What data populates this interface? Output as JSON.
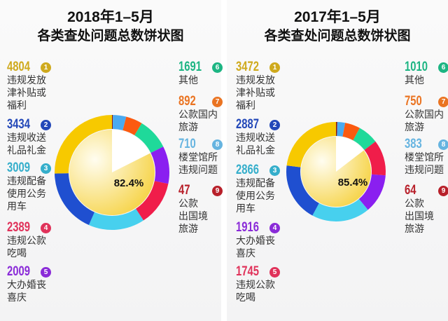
{
  "chart_data": [
    {
      "type": "pie",
      "title": "2018年1–5月",
      "subtitle": "各类查处问题总数饼状图",
      "center_label": "82.4%",
      "inner_share": 82.4,
      "items": [
        {
          "rank": "1",
          "value": 4804,
          "lines": [
            "违规发放",
            "津补贴或",
            "福利"
          ],
          "color": "#f7c900",
          "label_color": "#cfaa1e"
        },
        {
          "rank": "2",
          "value": 3434,
          "lines": [
            "违规收送",
            "礼品礼金"
          ],
          "color": "#1f4fd0",
          "label_color": "#2348b8"
        },
        {
          "rank": "3",
          "value": 3009,
          "lines": [
            "违规配备",
            "使用公务",
            "用车"
          ],
          "color": "#47d0ee",
          "label_color": "#35aecb"
        },
        {
          "rank": "4",
          "value": 2389,
          "lines": [
            "违规公款",
            "吃喝"
          ],
          "color": "#f01d4a",
          "label_color": "#e0325a"
        },
        {
          "rank": "5",
          "value": 2009,
          "lines": [
            "大办婚丧",
            "喜庆"
          ],
          "color": "#8a1ff0",
          "label_color": "#8a2bd8"
        },
        {
          "rank": "6",
          "value": 1691,
          "lines": [
            "其他"
          ],
          "color": "#1fd99a",
          "label_color": "#1db583"
        },
        {
          "rank": "7",
          "value": 892,
          "lines": [
            "公款国内",
            "旅游"
          ],
          "color": "#fb5a10",
          "label_color": "#ea7422"
        },
        {
          "rank": "8",
          "value": 710,
          "lines": [
            "楼堂馆所",
            "违规问题"
          ],
          "color": "#4aaaf0",
          "label_color": "#66b4e0"
        },
        {
          "rank": "9",
          "value": 47,
          "lines": [
            "公款",
            "出国境",
            "旅游"
          ],
          "color": "#8a1a10",
          "label_color": "#b8202a"
        }
      ]
    },
    {
      "type": "pie",
      "title": "2017年1–5月",
      "subtitle": "各类查处问题总数饼状图",
      "center_label": "85.4%",
      "inner_share": 85.4,
      "items": [
        {
          "rank": "1",
          "value": 3472,
          "lines": [
            "违规发放",
            "津补贴或",
            "福利"
          ],
          "color": "#f7c900",
          "label_color": "#cfaa1e"
        },
        {
          "rank": "2",
          "value": 2887,
          "lines": [
            "违规收送",
            "礼品礼金"
          ],
          "color": "#1f4fd0",
          "label_color": "#2348b8"
        },
        {
          "rank": "3",
          "value": 2866,
          "lines": [
            "违规配备",
            "使用公务",
            "用车"
          ],
          "color": "#47d0ee",
          "label_color": "#35aecb"
        },
        {
          "rank": "4",
          "value": 1916,
          "lines": [
            "大办婚丧",
            "喜庆"
          ],
          "color": "#8a1ff0",
          "label_color": "#8a2bd8"
        },
        {
          "rank": "5",
          "value": 1745,
          "lines": [
            "违规公款",
            "吃喝"
          ],
          "color": "#f01d4a",
          "label_color": "#e0325a"
        },
        {
          "rank": "6",
          "value": 1010,
          "lines": [
            "其他"
          ],
          "color": "#1fd99a",
          "label_color": "#1db583"
        },
        {
          "rank": "7",
          "value": 750,
          "lines": [
            "公款国内",
            "旅游"
          ],
          "color": "#fb5a10",
          "label_color": "#ea7422"
        },
        {
          "rank": "8",
          "value": 383,
          "lines": [
            "楼堂馆所",
            "违规问题"
          ],
          "color": "#4aaaf0",
          "label_color": "#66b4e0"
        },
        {
          "rank": "9",
          "value": 64,
          "lines": [
            "公款",
            "出国境",
            "旅游"
          ],
          "color": "#8a1a10",
          "label_color": "#b8202a"
        }
      ]
    }
  ]
}
